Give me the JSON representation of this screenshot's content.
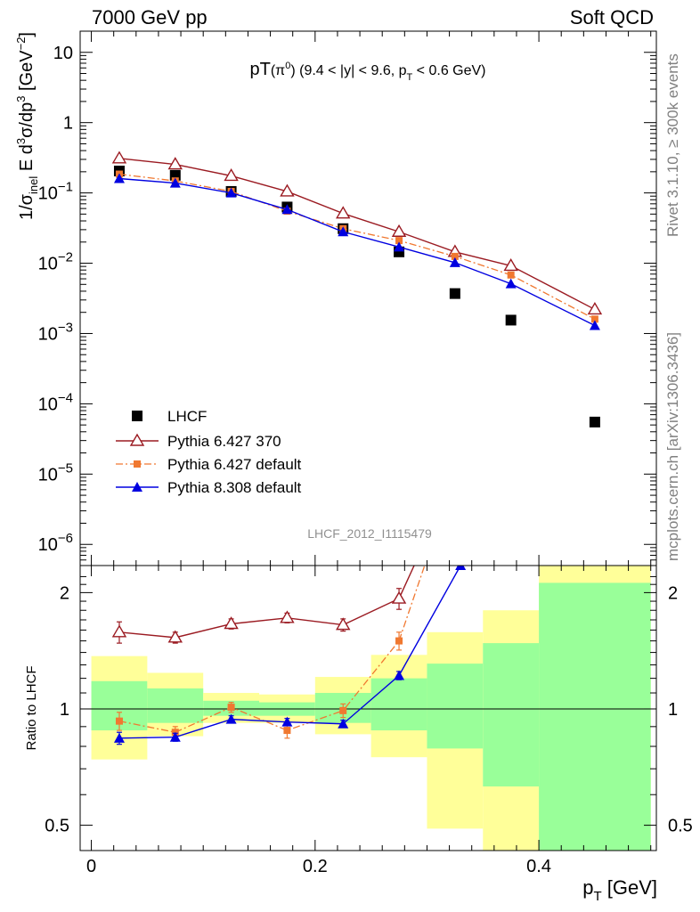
{
  "header": {
    "left": "7000 GeV pp",
    "right": "Soft QCD"
  },
  "side_labels": {
    "rivet": "Rivet 3.1.10, ≥ 300k events",
    "mcplots": "mcplots.cern.ch [arXiv:1306.3436]"
  },
  "colors": {
    "data": "#000000",
    "pythia6_370": "#9b1b22",
    "pythia6_default": "#f07830",
    "pythia8": "#0000e0",
    "band_yellow": "#ffff99",
    "band_green": "#99ff99",
    "watermark": "#909090"
  },
  "chart_data": {
    "type": "scatter",
    "title": "pT(π⁰) (9.4 < |y| < 9.6, pT < 0.6 GeV)",
    "watermark": "LHCF_2012_I1115479",
    "xlabel": "pT [GeV]",
    "x_ticks": [
      "0",
      "0.2",
      "0.4"
    ],
    "xlim": [
      -0.01,
      0.505
    ],
    "main": {
      "ylabel": "1/σinel E d³σ/dp³ [GeV⁻²]",
      "yscale": "log",
      "ylim": [
        5e-07,
        20
      ],
      "y_ticks": [
        "10⁻⁶",
        "10⁻⁵",
        "10⁻⁴",
        "10⁻³",
        "10⁻²",
        "10⁻¹",
        "1",
        "10"
      ],
      "y_tick_values": [
        1e-06,
        1e-05,
        0.0001,
        0.001,
        0.01,
        0.1,
        1,
        10
      ],
      "legend_position": "lower-left",
      "series": [
        {
          "name": "LHCF",
          "marker": "square",
          "x": [
            0.025,
            0.075,
            0.125,
            0.175,
            0.225,
            0.275,
            0.325,
            0.375,
            0.45
          ],
          "y": [
            0.205,
            0.178,
            0.105,
            0.063,
            0.031,
            0.0145,
            0.0037,
            0.00155,
            5.5e-05
          ]
        },
        {
          "name": "Pythia 6.427 370",
          "marker": "open-triangle",
          "x": [
            0.025,
            0.075,
            0.125,
            0.175,
            0.225,
            0.275,
            0.325,
            0.375,
            0.45
          ],
          "y": [
            0.31,
            0.255,
            0.175,
            0.105,
            0.051,
            0.028,
            0.0145,
            0.0092,
            0.0022
          ]
        },
        {
          "name": "Pythia 6.427 default",
          "marker": "small-square",
          "x": [
            0.025,
            0.075,
            0.125,
            0.175,
            0.225,
            0.275,
            0.325,
            0.375,
            0.45
          ],
          "y": [
            0.185,
            0.148,
            0.105,
            0.055,
            0.031,
            0.021,
            0.0125,
            0.0068,
            0.0016
          ]
        },
        {
          "name": "Pythia 8.308 default",
          "marker": "filled-triangle",
          "x": [
            0.025,
            0.075,
            0.125,
            0.175,
            0.225,
            0.275,
            0.325,
            0.375,
            0.45
          ],
          "y": [
            0.16,
            0.138,
            0.1,
            0.058,
            0.028,
            0.017,
            0.0102,
            0.0051,
            0.0013
          ]
        }
      ]
    },
    "ratio": {
      "ylabel": "Ratio to LHCF",
      "yscale": "log",
      "ylim": [
        0.43,
        2.35
      ],
      "y_ticks": [
        "0.5",
        "1",
        "2"
      ],
      "y_tick_values": [
        0.5,
        1,
        2
      ],
      "bands": {
        "x_edges": [
          0.0,
          0.05,
          0.1,
          0.15,
          0.2,
          0.25,
          0.3,
          0.35,
          0.4,
          0.5
        ],
        "yellow_low": [
          0.74,
          0.85,
          0.92,
          0.92,
          0.86,
          0.75,
          0.49,
          0.36,
          0.3
        ],
        "yellow_high": [
          1.37,
          1.24,
          1.1,
          1.09,
          1.21,
          1.38,
          1.58,
          1.8,
          2.35
        ],
        "green_low": [
          0.88,
          0.92,
          0.96,
          0.96,
          0.92,
          0.88,
          0.79,
          0.63,
          0.3
        ],
        "green_high": [
          1.18,
          1.13,
          1.05,
          1.04,
          1.1,
          1.2,
          1.31,
          1.48,
          2.12
        ]
      },
      "series": [
        {
          "name": "Pythia 6.427 370",
          "x": [
            0.025,
            0.075,
            0.125,
            0.175,
            0.225,
            0.275,
            0.325
          ],
          "y": [
            1.58,
            1.53,
            1.66,
            1.72,
            1.65,
            1.93,
            4.0
          ],
          "err": [
            0.1,
            0.05,
            0.05,
            0.05,
            0.06,
            0.12,
            0
          ]
        },
        {
          "name": "Pythia 6.427 default",
          "x": [
            0.025,
            0.075,
            0.125,
            0.175,
            0.225,
            0.275,
            0.325
          ],
          "y": [
            0.93,
            0.87,
            1.01,
            0.88,
            0.99,
            1.5,
            4.0
          ],
          "err": [
            0.05,
            0.03,
            0.03,
            0.04,
            0.04,
            0.08,
            0
          ]
        },
        {
          "name": "Pythia 8.308 default",
          "x": [
            0.025,
            0.075,
            0.125,
            0.175,
            0.225,
            0.275,
            0.33
          ],
          "y": [
            0.84,
            0.845,
            0.94,
            0.925,
            0.915,
            1.22,
            2.35
          ],
          "err": [
            0.03,
            0.02,
            0.02,
            0.02,
            0.02,
            0.03,
            0
          ]
        }
      ]
    }
  }
}
